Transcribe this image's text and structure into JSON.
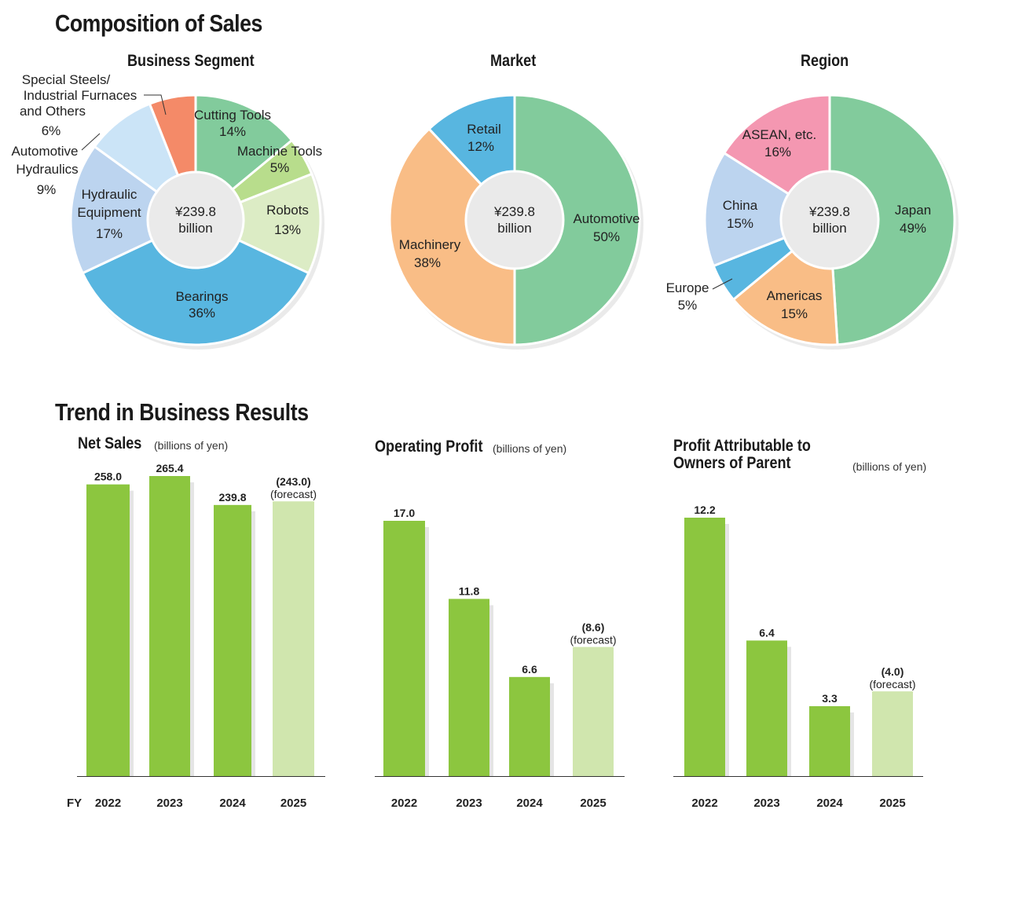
{
  "titles": {
    "composition": "Composition of Sales",
    "trend": "Trend in Business Results"
  },
  "chart_data": [
    {
      "type": "pie",
      "title": "Business Segment",
      "center_label": [
        "¥239.8",
        "billion"
      ],
      "slices": [
        {
          "label": "Cutting Tools",
          "value": 14,
          "pct": "14%",
          "color": "#82cb9c"
        },
        {
          "label": "Machine Tools",
          "value": 5,
          "pct": "5%",
          "color": "#b8dd8c"
        },
        {
          "label": "Robots",
          "value": 13,
          "pct": "13%",
          "color": "#dcecc5"
        },
        {
          "label": "Bearings",
          "value": 36,
          "pct": "36%",
          "color": "#58b6e0"
        },
        {
          "label": "Hydraulic Equipment",
          "value": 17,
          "pct": "17%",
          "color": "#bcd4ef"
        },
        {
          "label": "Automotive Hydraulics",
          "value": 9,
          "pct": "9%",
          "color": "#cbe4f7"
        },
        {
          "label": "Special Steels/ Industrial Furnaces and Others",
          "value": 6,
          "pct": "6%",
          "color": "#f48a68"
        }
      ]
    },
    {
      "type": "pie",
      "title": "Market",
      "center_label": [
        "¥239.8",
        "billion"
      ],
      "slices": [
        {
          "label": "Automotive",
          "value": 50,
          "pct": "50%",
          "color": "#82cb9c"
        },
        {
          "label": "Machinery",
          "value": 38,
          "pct": "38%",
          "color": "#f9bd86"
        },
        {
          "label": "Retail",
          "value": 12,
          "pct": "12%",
          "color": "#58b6e0"
        }
      ]
    },
    {
      "type": "pie",
      "title": "Region",
      "center_label": [
        "¥239.8",
        "billion"
      ],
      "slices": [
        {
          "label": "Japan",
          "value": 49,
          "pct": "49%",
          "color": "#82cb9c"
        },
        {
          "label": "Americas",
          "value": 15,
          "pct": "15%",
          "color": "#f9bd86"
        },
        {
          "label": "Europe",
          "value": 5,
          "pct": "5%",
          "color": "#58b6e0"
        },
        {
          "label": "China",
          "value": 15,
          "pct": "15%",
          "color": "#bcd4ef"
        },
        {
          "label": "ASEAN, etc.",
          "value": 16,
          "pct": "16%",
          "color": "#f497b1"
        }
      ]
    },
    {
      "type": "bar",
      "title": "Net Sales",
      "unit": "(billions of yen)",
      "x_prefix": "FY",
      "categories": [
        "2022",
        "2023",
        "2024",
        "2025"
      ],
      "values": [
        258.0,
        265.4,
        239.8,
        243.0
      ],
      "value_labels": [
        "258.0",
        "265.4",
        "239.8",
        "(243.0)"
      ],
      "forecast": [
        false,
        false,
        false,
        true
      ],
      "forecast_label": "(forecast)",
      "colors": {
        "actual": "#8cc63f",
        "forecast": "#d0e6ae"
      }
    },
    {
      "type": "bar",
      "title": "Operating Profit",
      "unit": "(billions of yen)",
      "categories": [
        "2022",
        "2023",
        "2024",
        "2025"
      ],
      "values": [
        17.0,
        11.8,
        6.6,
        8.6
      ],
      "value_labels": [
        "17.0",
        "11.8",
        "6.6",
        "(8.6)"
      ],
      "forecast": [
        false,
        false,
        false,
        true
      ],
      "forecast_label": "(forecast)",
      "colors": {
        "actual": "#8cc63f",
        "forecast": "#d0e6ae"
      }
    },
    {
      "type": "bar",
      "title": "Profit Attributable to Owners of Parent",
      "unit": "(billions of yen)",
      "categories": [
        "2022",
        "2023",
        "2024",
        "2025"
      ],
      "values": [
        12.2,
        6.4,
        3.3,
        4.0
      ],
      "value_labels": [
        "12.2",
        "6.4",
        "3.3",
        "(4.0)"
      ],
      "forecast": [
        false,
        false,
        false,
        true
      ],
      "forecast_label": "(forecast)",
      "colors": {
        "actual": "#8cc63f",
        "forecast": "#d0e6ae"
      }
    }
  ]
}
